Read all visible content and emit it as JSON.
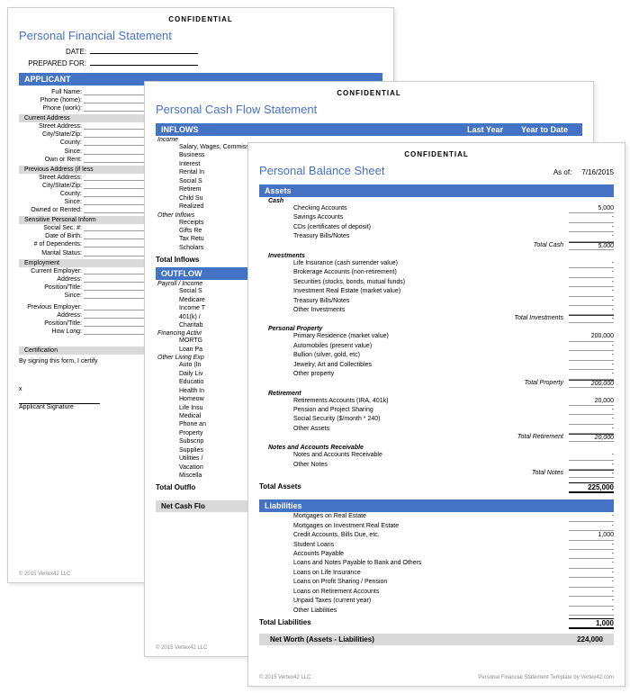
{
  "confidential": "CONFIDENTIAL",
  "page1": {
    "title": "Personal Financial Statement",
    "date_label": "DATE:",
    "prepared_for": "PREPARED FOR:",
    "applicant_header": "APPLICANT",
    "fields": {
      "full_name": "Full Name:",
      "phone_home": "Phone (home):",
      "phone_work": "Phone (work):"
    },
    "current_address": "Current Address",
    "addr_fields": {
      "street": "Street Address:",
      "csz": "City/State/Zip:",
      "county": "County:",
      "since": "Since:",
      "own_rent": "Own or Rent:"
    },
    "prev_address": "Previous Address (if less",
    "prev_fields": {
      "street": "Street Address:",
      "csz": "City/State/Zip:",
      "county": "County:",
      "since": "Since:",
      "owned_rented": "Owned or Rented:"
    },
    "sensitive": "Sensitive Personal Inform",
    "sens_fields": {
      "ssn": "Social Sec. #:",
      "dob": "Date of Birth:",
      "deps": "# of Dependents:",
      "marital": "Marital Status:"
    },
    "employment": "Employment",
    "emp_fields": {
      "current": "Current Employer:",
      "address": "Address:",
      "position": "Position/Title:",
      "since": "Since:",
      "previous": "Previous Employer:",
      "paddress": "Address:",
      "pposition": "Position/Title:",
      "howlong": "How Long:"
    },
    "certification": "Certification",
    "cert_text": "By signing this form, I certify",
    "sig_x": "x",
    "sig_label": "Applicant Signature",
    "copyright": "© 2015 Vertex42 LLC"
  },
  "page2": {
    "title": "Personal Cash Flow Statement",
    "inflows": "INFLOWS",
    "last_year": "Last Year",
    "ytd": "Year to Date",
    "income": "Income",
    "income_items": [
      "Salary, Wages, Commissions",
      "Business",
      "Interest",
      "Rental In",
      "Social S",
      "Retirem",
      "Child Su",
      "Realized"
    ],
    "other_inflows": "Other Inflows",
    "other_items": [
      "Receipts",
      "Gifts Re",
      "Tax Retu",
      "Scholars"
    ],
    "total_inflows": "Total Inflows",
    "outflows": "OUTFLOW",
    "payroll": "Payroll / Income",
    "payroll_items": [
      "Social S",
      "Medicare",
      "Income T",
      "401(k) /",
      "Charitab"
    ],
    "financing": "Financing Activi",
    "fin_items": [
      "MORTG",
      "Loan Pa"
    ],
    "living": "Other Living Exp",
    "living_items": [
      "Auto (In",
      "Daily Liv",
      "Educatio",
      "Health In",
      "Homeow",
      "Life Insu",
      "Medical",
      "Phone an",
      "Property",
      "Subscrip",
      "Supplies",
      "Utilities /",
      "Vacation",
      "Miscella"
    ],
    "total_outflows": "Total Outflo",
    "net_cash": "Net Cash Flo",
    "copyright": "© 2015 Vertex42 LLC"
  },
  "page3": {
    "title": "Personal Balance Sheet",
    "asof_label": "As of:",
    "asof_date": "7/16/2015",
    "assets": "Assets",
    "cash": "Cash",
    "cash_items": [
      {
        "label": "Checking Accounts",
        "val": "5,000"
      },
      {
        "label": "Savings Accounts",
        "val": "-"
      },
      {
        "label": "CDs (certificates of deposit)",
        "val": "-"
      },
      {
        "label": "Treasury Bills/Notes",
        "val": "-"
      }
    ],
    "total_cash_label": "Total Cash",
    "total_cash": "5,000",
    "investments": "Investments",
    "inv_items": [
      {
        "label": "Life Insurance (cash surrender value)",
        "val": "-"
      },
      {
        "label": "Brokerage Accounts (non-retirement)",
        "val": "-"
      },
      {
        "label": "Securities (stocks, bonds, mutual funds)",
        "val": "-"
      },
      {
        "label": "Investment Real Estate (market value)",
        "val": "-"
      },
      {
        "label": "Treasury Bills/Notes",
        "val": "-"
      },
      {
        "label": "Other Investments",
        "val": "-"
      }
    ],
    "total_inv_label": "Total Investments",
    "total_inv": "-",
    "property": "Personal Property",
    "prop_items": [
      {
        "label": "Primary Residence (market value)",
        "val": "200,000"
      },
      {
        "label": "Automobiles (present value)",
        "val": "-"
      },
      {
        "label": "Bullion (silver, gold, etc)",
        "val": "-"
      },
      {
        "label": "Jewelry, Art and Collectibles",
        "val": "-"
      },
      {
        "label": "Other property",
        "val": "-"
      }
    ],
    "total_prop_label": "Total Property",
    "total_prop": "200,000",
    "retirement": "Retirement",
    "ret_items": [
      {
        "label": "Retirements Accounts (IRA, 401k)",
        "val": "20,000"
      },
      {
        "label": "Pension and Project Sharing",
        "val": "-"
      },
      {
        "label": "Social Security ($/month * 240)",
        "val": "-"
      },
      {
        "label": "Other Assets",
        "val": "-"
      }
    ],
    "total_ret_label": "Total Retirement",
    "total_ret": "20,000",
    "notes": "Notes and Accounts Receivable",
    "notes_items": [
      {
        "label": "Notes and Accounts Receivable",
        "val": "-"
      },
      {
        "label": "Other Notes",
        "val": "-"
      }
    ],
    "total_notes_label": "Total Notes",
    "total_notes": "-",
    "total_assets_label": "Total Assets",
    "total_assets": "225,000",
    "liabilities": "Liabilities",
    "liab_items": [
      {
        "label": "Mortgages on Real Estate",
        "val": "-"
      },
      {
        "label": "Mortgages on Investment Real Estate",
        "val": "-"
      },
      {
        "label": "Credit Accounts, Bills Due, etc.",
        "val": "1,000"
      },
      {
        "label": "Student Loans",
        "val": "-"
      },
      {
        "label": "Accounts Payable",
        "val": "-"
      },
      {
        "label": "Loans and Notes Payable to Bank and Others",
        "val": "-"
      },
      {
        "label": "Loans on Life Insurance",
        "val": "-"
      },
      {
        "label": "Loans on Profit Sharing / Pension",
        "val": "-"
      },
      {
        "label": "Loans on Retirement Accounts",
        "val": "-"
      },
      {
        "label": "Unpaid Taxes (current year)",
        "val": "-"
      },
      {
        "label": "Other Liabilities",
        "val": "-"
      }
    ],
    "total_liab_label": "Total Liabilities",
    "total_liab": "1,000",
    "net_worth_label": "Net Worth (Assets - Liabilities)",
    "net_worth": "224,000",
    "copyright": "© 2015 Vertex42 LLC",
    "template_by": "Personal Financial Statement Template by Vertex42.com"
  }
}
